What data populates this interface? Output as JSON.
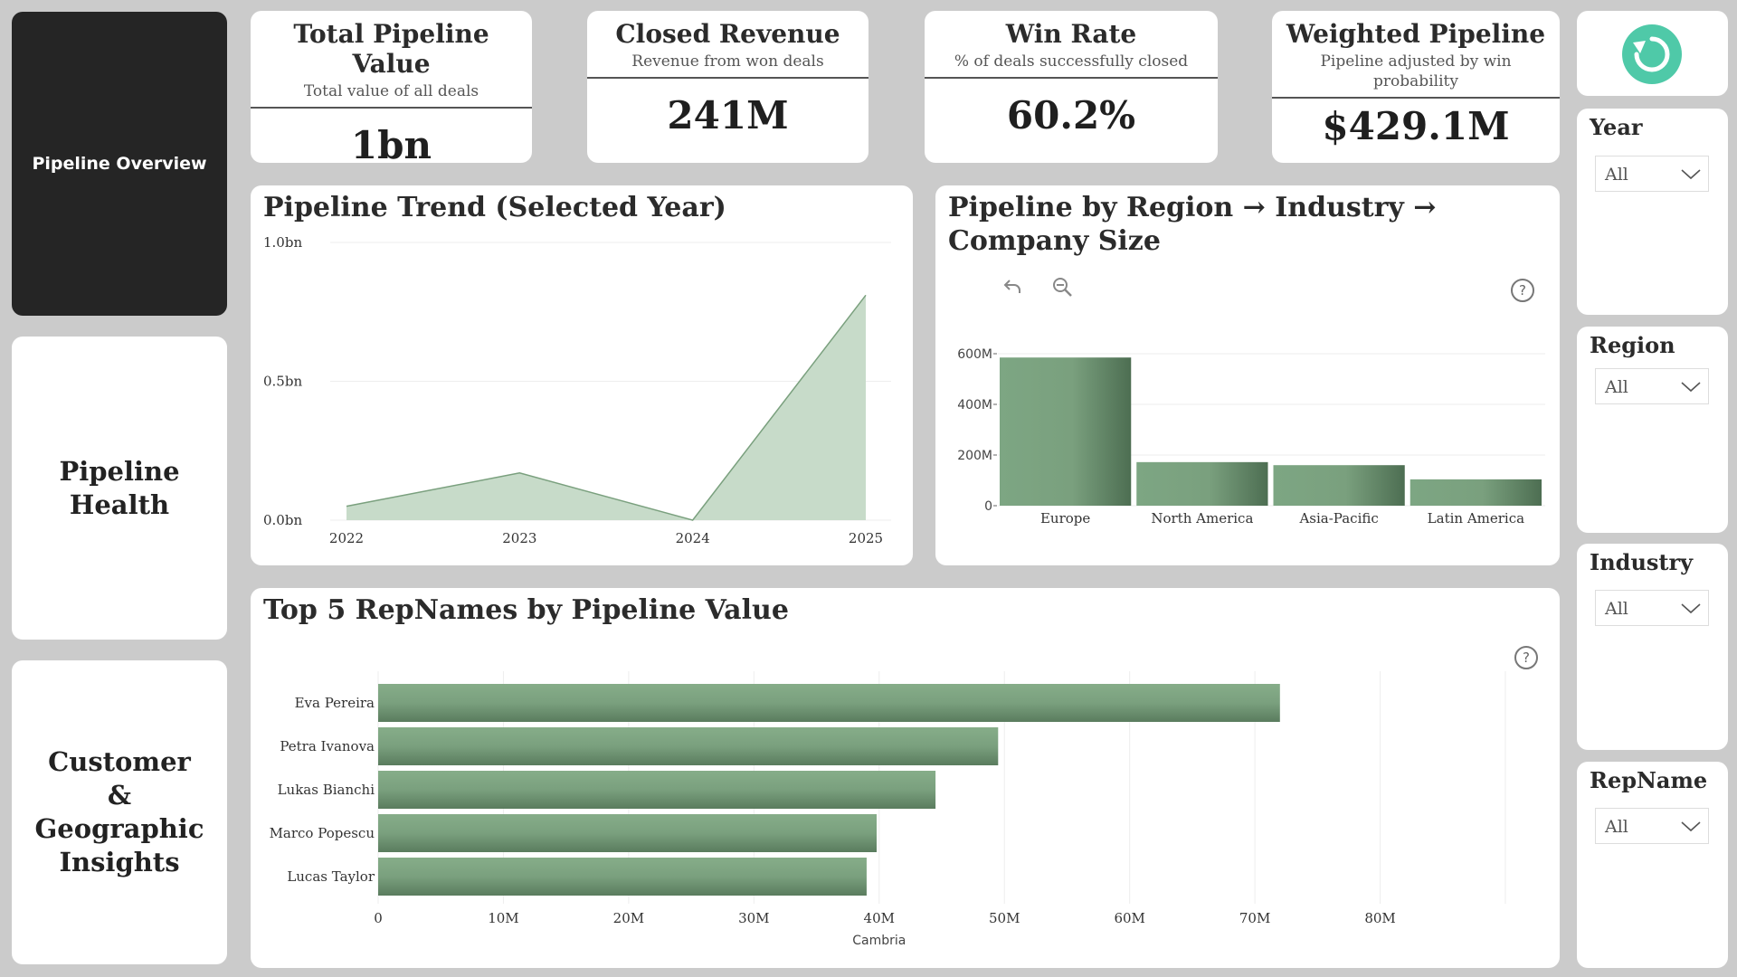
{
  "nav": {
    "items": [
      {
        "label": "Pipeline Overview"
      },
      {
        "label": "Pipeline Health"
      },
      {
        "label": "Customer & Geographic Insights"
      }
    ]
  },
  "kpis": [
    {
      "title": "Total Pipeline Value",
      "subtitle": "Total value of all deals",
      "value": "1bn"
    },
    {
      "title": "Closed Revenue",
      "subtitle": "Revenue from won deals",
      "value": "241M"
    },
    {
      "title": "Win Rate",
      "subtitle": "% of deals successfully closed",
      "value": "60.2%"
    },
    {
      "title": "Weighted Pipeline",
      "subtitle": "Pipeline adjusted by win probability",
      "value": "$429.1M"
    }
  ],
  "slicers": [
    {
      "label": "Year",
      "value": "All"
    },
    {
      "label": "Region",
      "value": "All"
    },
    {
      "label": "Industry",
      "value": "All"
    },
    {
      "label": "RepName",
      "value": "All"
    }
  ],
  "icons": {
    "refresh": "refresh-icon",
    "drill_up": "drill-up-icon",
    "zoom": "zoom-out-icon",
    "help": "help-icon"
  },
  "colors": {
    "bar": "#7aa07e",
    "area": "#c7dbc9",
    "area_line": "#7aa07e",
    "refresh": "#4fc9a8"
  },
  "chart_data": [
    {
      "type": "area",
      "title": "Pipeline Trend (Selected Year)",
      "categories": [
        "2022",
        "2023",
        "2024",
        "2025"
      ],
      "values": [
        0.05,
        0.17,
        0.0,
        0.81
      ],
      "ytick_labels": [
        "0.0bn",
        "0.5bn",
        "1.0bn"
      ],
      "yticks": [
        0,
        0.5,
        1.0
      ],
      "ylim": [
        0,
        1.0
      ],
      "grid": true
    },
    {
      "type": "bar",
      "title": "Pipeline by Region → Industry → Company Size",
      "categories": [
        "Europe",
        "North America",
        "Asia-Pacific",
        "Latin America"
      ],
      "values": [
        585,
        172,
        160,
        104
      ],
      "ytick_labels": [
        "0",
        "200M",
        "400M",
        "600M"
      ],
      "yticks": [
        0,
        200,
        400,
        600
      ],
      "ylim": [
        0,
        600
      ],
      "grid": true
    },
    {
      "type": "bar",
      "orientation": "horizontal",
      "title": "Top 5 RepNames by Pipeline Value",
      "categories": [
        "Eva Pereira",
        "Petra Ivanova",
        "Lukas Bianchi",
        "Marco Popescu",
        "Lucas Taylor"
      ],
      "values": [
        72,
        49.5,
        44.5,
        39.8,
        39.0
      ],
      "xtick_labels": [
        "0",
        "10M",
        "20M",
        "30M",
        "40M",
        "50M",
        "60M",
        "70M",
        "80M"
      ],
      "xticks": [
        0,
        10,
        20,
        30,
        40,
        50,
        60,
        70,
        80
      ],
      "xlim": [
        0,
        90
      ],
      "xlabel": "Cambria",
      "grid": true
    }
  ]
}
